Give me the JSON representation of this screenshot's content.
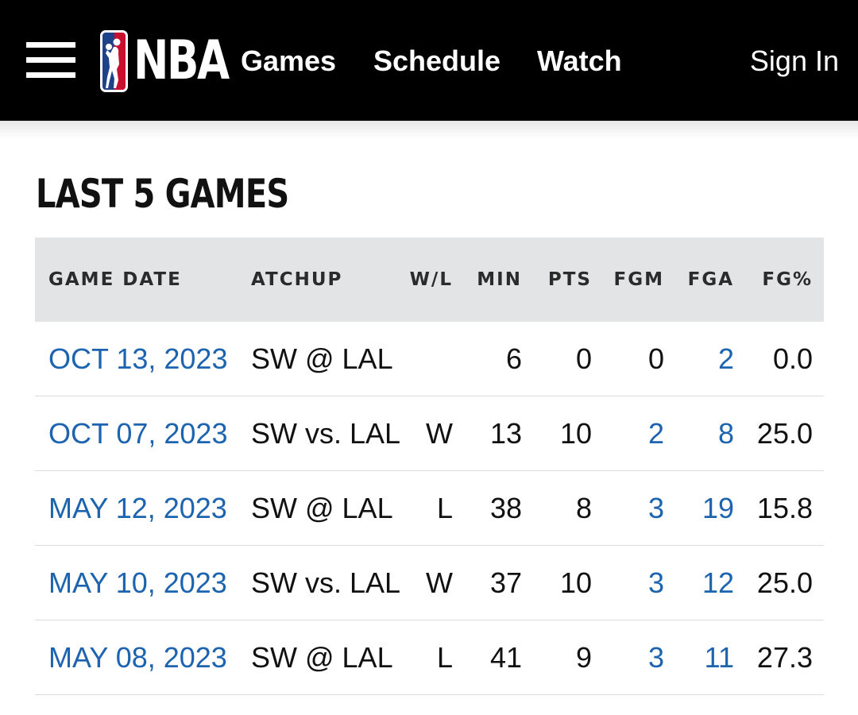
{
  "nav": {
    "logo_text": "NBA",
    "links": {
      "games": "Games",
      "schedule": "Schedule",
      "watch": "Watch"
    },
    "sign_in": "Sign In"
  },
  "section": {
    "title": "LAST 5 GAMES"
  },
  "table": {
    "headers": {
      "date": "GAME DATE",
      "matchup": "ATCHUP",
      "wl": "W/L",
      "min": "MIN",
      "pts": "PTS",
      "fgm": "FGM",
      "fga": "FGA",
      "fgp": "FG%"
    },
    "rows": [
      {
        "date": "OCT 13, 2023",
        "matchup": "SW @ LAL",
        "wl": "",
        "min": "6",
        "pts": "0",
        "fgm": "0",
        "fga": "2",
        "fgp": "0.0"
      },
      {
        "date": "OCT 07, 2023",
        "matchup": "SW vs. LAL",
        "wl": "W",
        "min": "13",
        "pts": "10",
        "fgm": "2",
        "fga": "8",
        "fgp": "25.0"
      },
      {
        "date": "MAY 12, 2023",
        "matchup": "SW @ LAL",
        "wl": "L",
        "min": "38",
        "pts": "8",
        "fgm": "3",
        "fga": "19",
        "fgp": "15.8"
      },
      {
        "date": "MAY 10, 2023",
        "matchup": "SW vs. LAL",
        "wl": "W",
        "min": "37",
        "pts": "10",
        "fgm": "3",
        "fga": "12",
        "fgp": "25.0"
      },
      {
        "date": "MAY 08, 2023",
        "matchup": "SW @ LAL",
        "wl": "L",
        "min": "41",
        "pts": "9",
        "fgm": "3",
        "fga": "11",
        "fgp": "27.3"
      }
    ]
  },
  "colors": {
    "nav_bg": "#000000",
    "link_blue": "#1d64b0",
    "header_bg": "#e3e4e6",
    "logo_blue": "#1d428a",
    "logo_red": "#c8102e"
  }
}
